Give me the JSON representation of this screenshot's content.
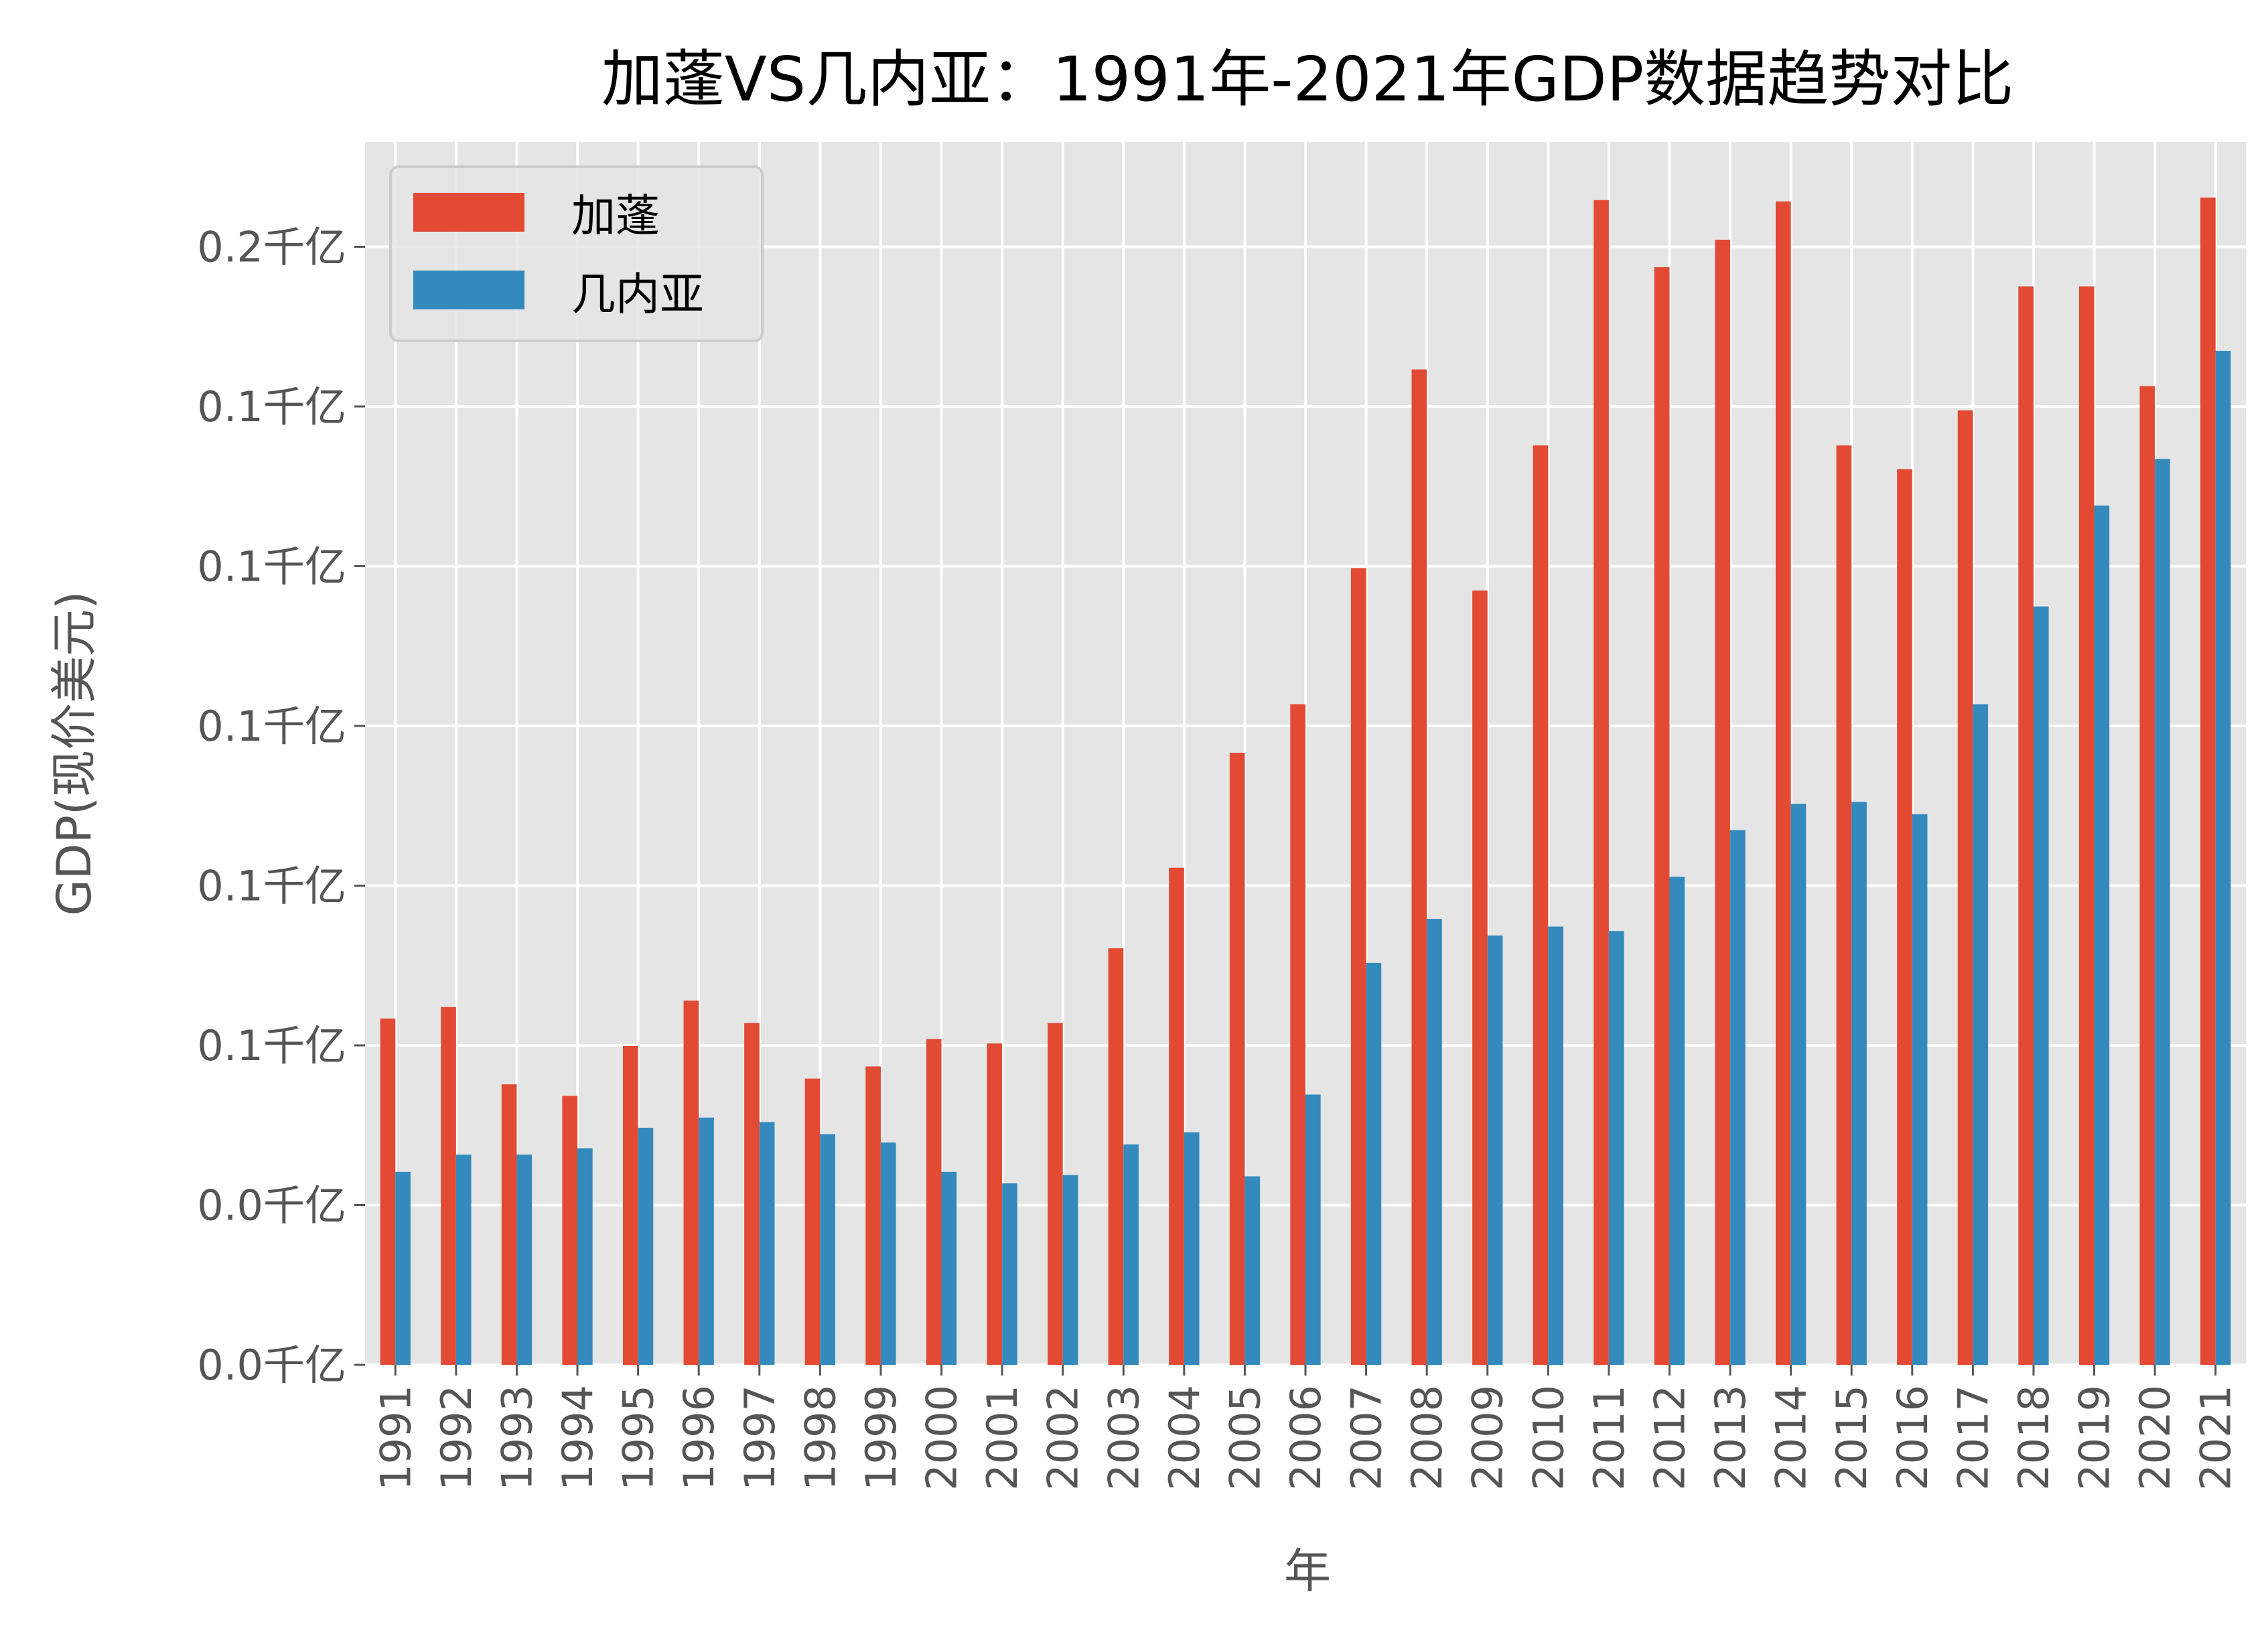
{
  "chart_data": {
    "type": "bar",
    "title": "加蓬VS几内亚：1991年-2021年GDP数据趋势对比",
    "xlabel": "年",
    "ylabel": "GDP(现价美元)",
    "categories": [
      "1991",
      "1992",
      "1993",
      "1994",
      "1995",
      "1996",
      "1997",
      "1998",
      "1999",
      "2000",
      "2001",
      "2002",
      "2003",
      "2004",
      "2005",
      "2006",
      "2007",
      "2008",
      "2009",
      "2010",
      "2011",
      "2012",
      "2013",
      "2014",
      "2015",
      "2016",
      "2017",
      "2018",
      "2019",
      "2020",
      "2021"
    ],
    "series": [
      {
        "name": "加蓬",
        "color": "#E24A33",
        "values": [
          0.0542,
          0.056,
          0.0439,
          0.0421,
          0.0499,
          0.057,
          0.0535,
          0.0448,
          0.0467,
          0.051,
          0.0503,
          0.0535,
          0.0652,
          0.0778,
          0.0958,
          0.1034,
          0.1247,
          0.1558,
          0.1212,
          0.1439,
          0.1823,
          0.1718,
          0.1761,
          0.1821,
          0.1439,
          0.1402,
          0.1494,
          0.1688,
          0.1688,
          0.1532,
          0.1827
        ]
      },
      {
        "name": "几内亚",
        "color": "#348ABD",
        "values": [
          0.0302,
          0.0329,
          0.0329,
          0.0339,
          0.0371,
          0.0387,
          0.038,
          0.0361,
          0.0348,
          0.0302,
          0.0284,
          0.0297,
          0.0345,
          0.0364,
          0.0295,
          0.0423,
          0.0629,
          0.0698,
          0.0672,
          0.0686,
          0.0679,
          0.0764,
          0.0837,
          0.0878,
          0.0881,
          0.0862,
          0.1034,
          0.1187,
          0.1345,
          0.1418,
          0.1587
        ]
      }
    ],
    "yticks": [
      0,
      0.025,
      0.05,
      0.075,
      0.1,
      0.125,
      0.15,
      0.175
    ],
    "ytick_labels": [
      "0.0千亿",
      "0.0千亿",
      "0.1千亿",
      "0.1千亿",
      "0.1千亿",
      "0.1千亿",
      "0.1千亿",
      "0.2千亿"
    ],
    "ylim": [
      0,
      0.1914
    ],
    "grid": true,
    "legend": "top-left",
    "background": "#E5E5E5"
  }
}
